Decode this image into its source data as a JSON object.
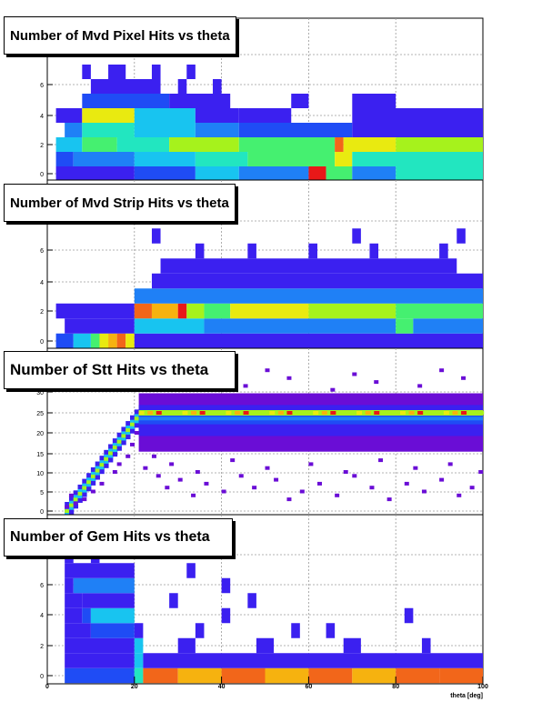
{
  "colors": {
    "palette": [
      "#6a0dd6",
      "#3b20f0",
      "#1f4cf5",
      "#1f80f6",
      "#18c4f0",
      "#22e6c0",
      "#45f070",
      "#a6f21c",
      "#e9ea10",
      "#f6b20f",
      "#f2661a",
      "#e81818"
    ]
  },
  "chart_data": [
    {
      "type": "heatmap",
      "title": "Number of Mvd Pixel Hits vs theta",
      "xlim": [
        0,
        100
      ],
      "ylim": [
        -0.5,
        8.5
      ],
      "yticks": [
        0,
        2,
        4,
        6,
        8
      ],
      "ytick_labels": [
        "0",
        "2",
        "4",
        "6",
        "8"
      ],
      "grid": true,
      "rows": [
        {
          "y": 0,
          "cells": [
            [
              2,
              20,
              1
            ],
            [
              20,
              34,
              2
            ],
            [
              34,
              44,
              4
            ],
            [
              44,
              60,
              3
            ],
            [
              60,
              64,
              11
            ],
            [
              64,
              70,
              6
            ],
            [
              70,
              80,
              3
            ],
            [
              80,
              100,
              5
            ]
          ]
        },
        {
          "y": 1,
          "cells": [
            [
              2,
              6,
              2
            ],
            [
              6,
              20,
              3
            ],
            [
              20,
              34,
              4
            ],
            [
              34,
              46,
              5
            ],
            [
              46,
              66,
              6
            ],
            [
              66,
              70,
              8
            ],
            [
              70,
              100,
              5
            ]
          ]
        },
        {
          "y": 2,
          "cells": [
            [
              2,
              8,
              4
            ],
            [
              8,
              16,
              6
            ],
            [
              16,
              28,
              5
            ],
            [
              28,
              44,
              7
            ],
            [
              44,
              66,
              6
            ],
            [
              66,
              68,
              10
            ],
            [
              68,
              80,
              8
            ],
            [
              80,
              100,
              7
            ]
          ]
        },
        {
          "y": 3,
          "cells": [
            [
              4,
              8,
              3
            ],
            [
              8,
              20,
              5
            ],
            [
              20,
              34,
              4
            ],
            [
              34,
              44,
              3
            ],
            [
              44,
              70,
              2
            ],
            [
              70,
              100,
              1
            ]
          ]
        },
        {
          "y": 4,
          "cells": [
            [
              2,
              8,
              1
            ],
            [
              8,
              20,
              8
            ],
            [
              20,
              34,
              4
            ],
            [
              34,
              44,
              1
            ],
            [
              44,
              56,
              1
            ],
            [
              70,
              100,
              1
            ]
          ]
        },
        {
          "y": 5,
          "cells": [
            [
              8,
              28,
              2
            ],
            [
              28,
              42,
              1
            ],
            [
              56,
              60,
              1
            ],
            [
              70,
              80,
              1
            ]
          ]
        },
        {
          "y": 6,
          "cells": [
            [
              10,
              26,
              1
            ],
            [
              30,
              32,
              1
            ],
            [
              38,
              40,
              1
            ]
          ]
        },
        {
          "y": 7,
          "cells": [
            [
              8,
              10,
              1
            ],
            [
              14,
              18,
              1
            ],
            [
              24,
              26,
              1
            ],
            [
              32,
              34,
              1
            ]
          ]
        }
      ]
    },
    {
      "type": "heatmap",
      "title": "Number of Mvd Strip Hits vs theta",
      "xlim": [
        0,
        100
      ],
      "ylim": [
        -0.5,
        8.5
      ],
      "yticks": [
        0,
        2,
        4,
        6,
        8
      ],
      "ytick_labels": [
        "0",
        "2",
        "4",
        "6",
        "8"
      ],
      "grid": true,
      "rows": [
        {
          "y": 0,
          "cells": [
            [
              2,
              6,
              2
            ],
            [
              6,
              10,
              4
            ],
            [
              10,
              12,
              6
            ],
            [
              12,
              14,
              8
            ],
            [
              14,
              16,
              9
            ],
            [
              16,
              18,
              10
            ],
            [
              18,
              20,
              8
            ],
            [
              20,
              100,
              1
            ]
          ]
        },
        {
          "y": 1,
          "cells": [
            [
              4,
              20,
              1
            ],
            [
              20,
              36,
              4
            ],
            [
              36,
              80,
              3
            ],
            [
              80,
              84,
              6
            ],
            [
              84,
              100,
              3
            ]
          ]
        },
        {
          "y": 2,
          "cells": [
            [
              2,
              20,
              1
            ],
            [
              20,
              24,
              10
            ],
            [
              24,
              30,
              9
            ],
            [
              30,
              32,
              11
            ],
            [
              32,
              36,
              7
            ],
            [
              36,
              42,
              6
            ],
            [
              42,
              60,
              8
            ],
            [
              60,
              80,
              7
            ],
            [
              80,
              100,
              6
            ]
          ]
        },
        {
          "y": 3,
          "cells": [
            [
              20,
              100,
              3
            ]
          ]
        },
        {
          "y": 4,
          "cells": [
            [
              24,
              100,
              1
            ]
          ]
        },
        {
          "y": 5,
          "cells": [
            [
              26,
              94,
              1
            ]
          ]
        },
        {
          "y": 6,
          "cells": [
            [
              34,
              36,
              1
            ],
            [
              46,
              48,
              1
            ],
            [
              60,
              62,
              1
            ],
            [
              74,
              76,
              1
            ],
            [
              90,
              92,
              1
            ]
          ]
        },
        {
          "y": 7,
          "cells": [
            [
              24,
              26,
              1
            ],
            [
              70,
              72,
              1
            ],
            [
              94,
              96,
              1
            ]
          ]
        }
      ]
    },
    {
      "type": "heatmap",
      "title": "Number of Stt Hits vs theta",
      "xlim": [
        0,
        100
      ],
      "ylim": [
        0,
        37
      ],
      "yticks": [
        0,
        5,
        10,
        15,
        20,
        25,
        30
      ],
      "ytick_labels": [
        "0",
        "5",
        "10",
        "15",
        "20",
        "25",
        "30"
      ],
      "grid": true,
      "ramp": {
        "x": [
          4,
          21
        ],
        "y": [
          0,
          25
        ]
      },
      "plateau": {
        "x": [
          21,
          100
        ],
        "peak_y": 25
      },
      "scatter_points": [
        [
          4,
          1
        ],
        [
          6,
          2
        ],
        [
          5,
          4
        ],
        [
          8,
          3
        ],
        [
          10,
          5
        ],
        [
          12,
          7
        ],
        [
          15,
          10
        ],
        [
          16,
          12
        ],
        [
          18,
          14
        ],
        [
          19,
          17
        ],
        [
          20,
          20
        ],
        [
          22,
          11
        ],
        [
          25,
          9
        ],
        [
          27,
          6
        ],
        [
          30,
          8
        ],
        [
          33,
          4
        ],
        [
          36,
          7
        ],
        [
          40,
          5
        ],
        [
          44,
          9
        ],
        [
          47,
          6
        ],
        [
          52,
          8
        ],
        [
          55,
          3
        ],
        [
          58,
          5
        ],
        [
          62,
          7
        ],
        [
          66,
          4
        ],
        [
          70,
          9
        ],
        [
          74,
          6
        ],
        [
          78,
          3
        ],
        [
          82,
          7
        ],
        [
          86,
          5
        ],
        [
          90,
          8
        ],
        [
          94,
          4
        ],
        [
          97,
          6
        ],
        [
          24,
          14
        ],
        [
          28,
          12
        ],
        [
          34,
          10
        ],
        [
          42,
          13
        ],
        [
          50,
          11
        ],
        [
          60,
          12
        ],
        [
          68,
          10
        ],
        [
          76,
          13
        ],
        [
          84,
          11
        ],
        [
          92,
          12
        ],
        [
          99,
          10
        ],
        [
          26,
          31
        ],
        [
          35,
          33
        ],
        [
          45,
          32
        ],
        [
          55,
          34
        ],
        [
          65,
          31
        ],
        [
          75,
          33
        ],
        [
          85,
          32
        ],
        [
          95,
          34
        ],
        [
          30,
          36
        ],
        [
          50,
          36
        ],
        [
          70,
          35
        ],
        [
          90,
          36
        ]
      ]
    },
    {
      "type": "heatmap",
      "title": "Number of Gem Hits vs theta",
      "xlabel": "theta [deg]",
      "xlim": [
        0,
        100
      ],
      "ylim": [
        -0.5,
        8.5
      ],
      "xticks": [
        0,
        20,
        40,
        60,
        80,
        100
      ],
      "xtick_labels": [
        "0",
        "20",
        "40",
        "60",
        "80",
        "100"
      ],
      "yticks": [
        0,
        2,
        4,
        6,
        8
      ],
      "ytick_labels": [
        "0",
        "2",
        "4",
        "6",
        "8"
      ],
      "grid": true,
      "rows": [
        {
          "y": 0,
          "cells": [
            [
              4,
              20,
              2
            ],
            [
              20,
              22,
              5
            ],
            [
              22,
              30,
              10
            ],
            [
              30,
              40,
              9
            ],
            [
              40,
              50,
              10
            ],
            [
              50,
              60,
              9
            ],
            [
              60,
              70,
              10
            ],
            [
              70,
              80,
              9
            ],
            [
              80,
              90,
              10
            ],
            [
              90,
              100,
              10
            ]
          ]
        },
        {
          "y": 1,
          "cells": [
            [
              4,
              20,
              1
            ],
            [
              20,
              22,
              4
            ],
            [
              22,
              100,
              1
            ]
          ]
        },
        {
          "y": 2,
          "cells": [
            [
              4,
              20,
              1
            ],
            [
              20,
              22,
              4
            ],
            [
              30,
              34,
              1
            ],
            [
              48,
              52,
              1
            ],
            [
              68,
              72,
              1
            ],
            [
              86,
              88,
              1
            ]
          ]
        },
        {
          "y": 3,
          "cells": [
            [
              4,
              10,
              1
            ],
            [
              10,
              20,
              2
            ],
            [
              20,
              22,
              1
            ],
            [
              34,
              36,
              1
            ],
            [
              56,
              58,
              1
            ],
            [
              64,
              66,
              1
            ]
          ]
        },
        {
          "y": 4,
          "cells": [
            [
              4,
              8,
              1
            ],
            [
              8,
              10,
              2
            ],
            [
              10,
              20,
              4
            ],
            [
              40,
              42,
              1
            ],
            [
              82,
              84,
              1
            ]
          ]
        },
        {
          "y": 5,
          "cells": [
            [
              4,
              8,
              1
            ],
            [
              8,
              20,
              1
            ],
            [
              28,
              30,
              1
            ],
            [
              46,
              48,
              1
            ]
          ]
        },
        {
          "y": 6,
          "cells": [
            [
              4,
              6,
              1
            ],
            [
              6,
              20,
              3
            ],
            [
              40,
              42,
              1
            ]
          ]
        },
        {
          "y": 7,
          "cells": [
            [
              4,
              20,
              1
            ],
            [
              32,
              34,
              1
            ]
          ]
        },
        {
          "y": 8,
          "cells": [
            [
              4,
              6,
              1
            ],
            [
              10,
              12,
              1
            ]
          ]
        }
      ]
    }
  ]
}
